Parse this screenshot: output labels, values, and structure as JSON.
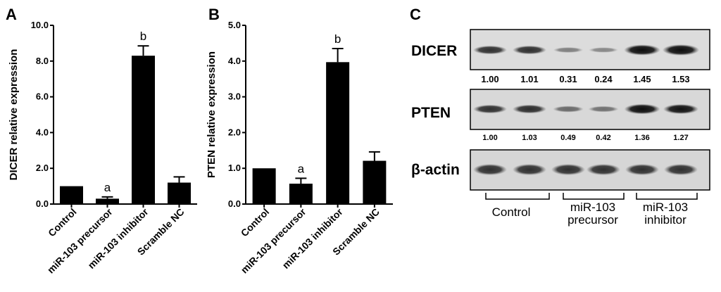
{
  "panels": {
    "A": "A",
    "B": "B",
    "C": "C"
  },
  "chart_data": [
    {
      "type": "bar",
      "panel": "A",
      "categories": [
        "Control",
        "miR-103 precursor",
        "miR-103 inhibitor",
        "Scramble NC"
      ],
      "values": [
        1.0,
        0.3,
        8.3,
        1.2
      ],
      "errors": [
        0.0,
        0.1,
        0.55,
        0.32
      ],
      "annotations": [
        "",
        "a",
        "b",
        ""
      ],
      "ylabel": "DICER relative expression",
      "ylim": [
        0,
        10
      ],
      "yticks": [
        0,
        2,
        4,
        6,
        8,
        10
      ],
      "ytick_labels": [
        "0.0",
        "2.0",
        "4.0",
        "6.0",
        "8.0",
        "10.0"
      ],
      "color": "#000000",
      "grid": false
    },
    {
      "type": "bar",
      "panel": "B",
      "categories": [
        "Control",
        "miR-103 precursor",
        "miR-103 inhibitor",
        "Scramble NC"
      ],
      "values": [
        1.0,
        0.57,
        3.97,
        1.21
      ],
      "errors": [
        0.0,
        0.15,
        0.38,
        0.25
      ],
      "annotations": [
        "",
        "a",
        "b",
        ""
      ],
      "ylabel": "PTEN relative expression",
      "ylim": [
        0,
        5
      ],
      "yticks": [
        0,
        1,
        2,
        3,
        4,
        5
      ],
      "ytick_labels": [
        "0.0",
        "1.0",
        "2.0",
        "3.0",
        "4.0",
        "5.0"
      ],
      "color": "#000000",
      "grid": false
    }
  ],
  "blot": {
    "rows": [
      {
        "label": "DICER",
        "values": [
          "1.00",
          "1.01",
          "0.31",
          "0.24",
          "1.45",
          "1.53"
        ],
        "intensity": [
          1.0,
          1.01,
          0.31,
          0.24,
          1.45,
          1.53
        ]
      },
      {
        "label": "PTEN",
        "values": [
          "1.00",
          "1.03",
          "0.49",
          "0.42",
          "1.36",
          "1.27"
        ],
        "intensity": [
          1.0,
          1.03,
          0.49,
          0.42,
          1.36,
          1.27
        ]
      },
      {
        "label": "β-actin",
        "values": [],
        "intensity": [
          1.0,
          1.0,
          1.0,
          1.0,
          1.0,
          1.0
        ]
      }
    ],
    "groups": [
      {
        "line1": "Control",
        "line2": ""
      },
      {
        "line1": "miR-103",
        "line2": "precursor"
      },
      {
        "line1": "miR-103",
        "line2": "inhibitor"
      }
    ]
  }
}
